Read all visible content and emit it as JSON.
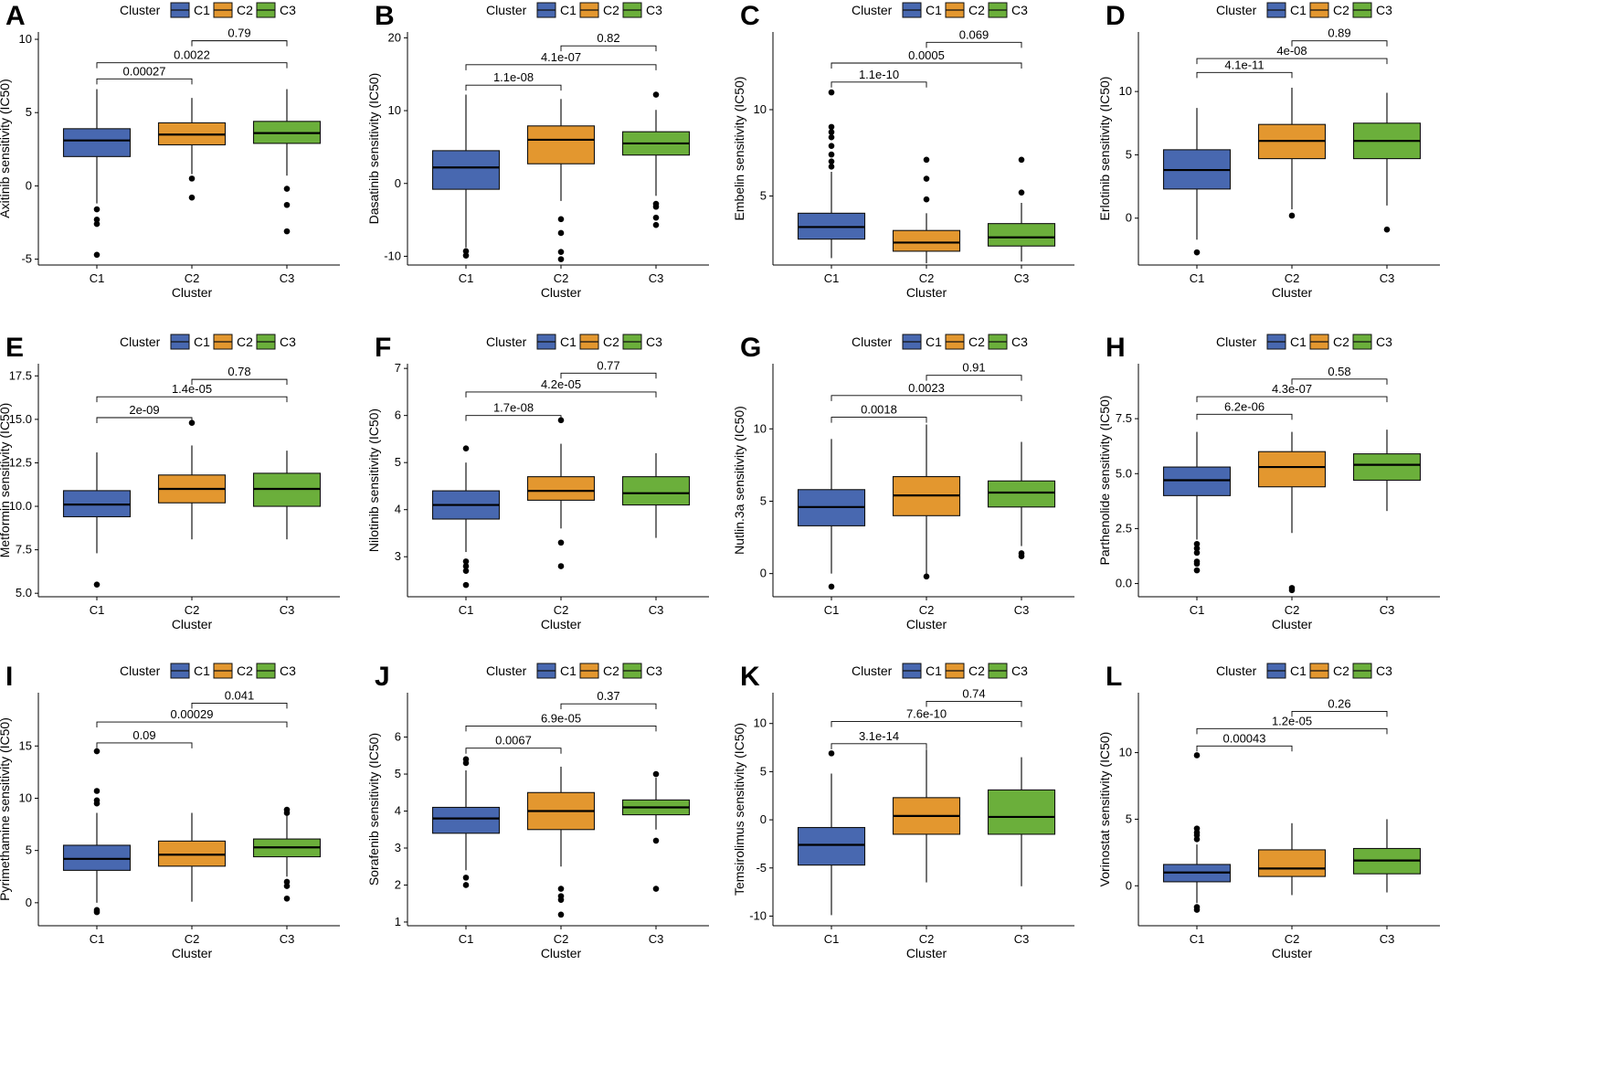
{
  "figure": {
    "legend_title": "Cluster",
    "x_axis_title": "Cluster"
  },
  "colors": {
    "C1": "#4868B0",
    "C2": "#E3972F",
    "C3": "#6BAF3B"
  },
  "chart_data": [
    {
      "panel": "A",
      "type": "boxplot",
      "ylabel": "Axitinib sensitivity (IC50)",
      "xlabel": "Cluster",
      "categories": [
        "C1",
        "C2",
        "C3"
      ],
      "ylim": [
        -5.4,
        10.5
      ],
      "yticks": [
        -5,
        0,
        5,
        10
      ],
      "legend": [
        "C1",
        "C2",
        "C3"
      ],
      "boxes": [
        {
          "name": "C1",
          "q1": 2.0,
          "median": 3.1,
          "q3": 3.9,
          "whisker_low": -1.2,
          "whisker_high": 6.6,
          "outliers": [
            -1.6,
            -2.3,
            -2.6,
            -4.7
          ]
        },
        {
          "name": "C2",
          "q1": 2.8,
          "median": 3.5,
          "q3": 4.3,
          "whisker_low": 0.8,
          "whisker_high": 6.0,
          "outliers": [
            0.5,
            -0.8
          ]
        },
        {
          "name": "C3",
          "q1": 2.9,
          "median": 3.6,
          "q3": 4.4,
          "whisker_low": 0.7,
          "whisker_high": 6.6,
          "outliers": [
            -0.2,
            -1.3,
            -3.1
          ]
        }
      ],
      "comparisons": [
        {
          "groups": [
            "C1",
            "C2"
          ],
          "label": "0.00027",
          "y": 7.3
        },
        {
          "groups": [
            "C1",
            "C3"
          ],
          "label": "0.0022",
          "y": 8.4
        },
        {
          "groups": [
            "C2",
            "C3"
          ],
          "label": "0.79",
          "y": 9.9
        }
      ]
    },
    {
      "panel": "B",
      "type": "boxplot",
      "ylabel": "Dasatinib sensitivity (IC50)",
      "xlabel": "Cluster",
      "categories": [
        "C1",
        "C2",
        "C3"
      ],
      "ylim": [
        -11.2,
        20.8
      ],
      "yticks": [
        -10,
        0,
        10,
        20
      ],
      "legend": [
        "C1",
        "C2",
        "C3"
      ],
      "boxes": [
        {
          "name": "C1",
          "q1": -0.8,
          "median": 2.2,
          "q3": 4.5,
          "whisker_low": -8.8,
          "whisker_high": 12.2,
          "outliers": [
            -9.3,
            -9.9
          ]
        },
        {
          "name": "C2",
          "q1": 2.7,
          "median": 6.0,
          "q3": 7.9,
          "whisker_low": -2.4,
          "whisker_high": 11.6,
          "outliers": [
            -4.9,
            -6.8,
            -9.4,
            -10.4
          ]
        },
        {
          "name": "C3",
          "q1": 3.9,
          "median": 5.5,
          "q3": 7.1,
          "whisker_low": -1.7,
          "whisker_high": 10.1,
          "outliers": [
            12.2,
            -2.8,
            -3.2,
            -4.7,
            -5.7
          ]
        }
      ],
      "comparisons": [
        {
          "groups": [
            "C1",
            "C2"
          ],
          "label": "1.1e-08",
          "y": 13.5
        },
        {
          "groups": [
            "C1",
            "C3"
          ],
          "label": "4.1e-07",
          "y": 16.3
        },
        {
          "groups": [
            "C2",
            "C3"
          ],
          "label": "0.82",
          "y": 18.9
        }
      ]
    },
    {
      "panel": "C",
      "type": "boxplot",
      "ylabel": "Embelin sensitivity (IC50)",
      "xlabel": "Cluster",
      "categories": [
        "C1",
        "C2",
        "C3"
      ],
      "ylim": [
        1.0,
        14.5
      ],
      "yticks": [
        5,
        10
      ],
      "legend": [
        "C1",
        "C2",
        "C3"
      ],
      "boxes": [
        {
          "name": "C1",
          "q1": 2.5,
          "median": 3.2,
          "q3": 4.0,
          "whisker_low": 1.4,
          "whisker_high": 6.4,
          "outliers": [
            11.0,
            9.0,
            8.7,
            8.4,
            7.9,
            7.4,
            7.0,
            6.7
          ]
        },
        {
          "name": "C2",
          "q1": 1.8,
          "median": 2.3,
          "q3": 3.0,
          "whisker_low": 1.1,
          "whisker_high": 4.0,
          "outliers": [
            7.1,
            6.0,
            4.8
          ]
        },
        {
          "name": "C3",
          "q1": 2.1,
          "median": 2.6,
          "q3": 3.4,
          "whisker_low": 1.2,
          "whisker_high": 4.6,
          "outliers": [
            7.1,
            5.2
          ]
        }
      ],
      "comparisons": [
        {
          "groups": [
            "C1",
            "C2"
          ],
          "label": "1.1e-10",
          "y": 11.6
        },
        {
          "groups": [
            "C1",
            "C3"
          ],
          "label": "0.0005",
          "y": 12.7
        },
        {
          "groups": [
            "C2",
            "C3"
          ],
          "label": "0.069",
          "y": 13.9
        }
      ]
    },
    {
      "panel": "D",
      "type": "boxplot",
      "ylabel": "Erlotinib sensitivity (IC50)",
      "xlabel": "Cluster",
      "categories": [
        "C1",
        "C2",
        "C3"
      ],
      "ylim": [
        -3.7,
        14.7
      ],
      "yticks": [
        0,
        5,
        10
      ],
      "legend": [
        "C1",
        "C2",
        "C3"
      ],
      "boxes": [
        {
          "name": "C1",
          "q1": 2.3,
          "median": 3.8,
          "q3": 5.4,
          "whisker_low": -1.7,
          "whisker_high": 8.7,
          "outliers": [
            -2.7
          ]
        },
        {
          "name": "C2",
          "q1": 4.7,
          "median": 6.1,
          "q3": 7.4,
          "whisker_low": 0.7,
          "whisker_high": 10.3,
          "outliers": [
            0.2
          ]
        },
        {
          "name": "C3",
          "q1": 4.7,
          "median": 6.1,
          "q3": 7.5,
          "whisker_low": 1.0,
          "whisker_high": 9.9,
          "outliers": [
            -0.9
          ]
        }
      ],
      "comparisons": [
        {
          "groups": [
            "C1",
            "C2"
          ],
          "label": "4.1e-11",
          "y": 11.5
        },
        {
          "groups": [
            "C1",
            "C3"
          ],
          "label": "4e-08",
          "y": 12.6
        },
        {
          "groups": [
            "C2",
            "C3"
          ],
          "label": "0.89",
          "y": 14.0
        }
      ]
    },
    {
      "panel": "E",
      "type": "boxplot",
      "ylabel": "Metformin sensitivity (IC50)",
      "xlabel": "Cluster",
      "categories": [
        "C1",
        "C2",
        "C3"
      ],
      "ylim": [
        4.8,
        18.2
      ],
      "yticks": [
        5.0,
        7.5,
        10.0,
        12.5,
        15.0,
        17.5
      ],
      "legend": [
        "C1",
        "C2",
        "C3"
      ],
      "boxes": [
        {
          "name": "C1",
          "q1": 9.4,
          "median": 10.1,
          "q3": 10.9,
          "whisker_low": 7.3,
          "whisker_high": 13.1,
          "outliers": [
            5.5
          ]
        },
        {
          "name": "C2",
          "q1": 10.2,
          "median": 11.0,
          "q3": 11.8,
          "whisker_low": 8.1,
          "whisker_high": 13.5,
          "outliers": [
            14.8
          ]
        },
        {
          "name": "C3",
          "q1": 10.0,
          "median": 11.0,
          "q3": 11.9,
          "whisker_low": 8.1,
          "whisker_high": 13.2,
          "outliers": []
        }
      ],
      "comparisons": [
        {
          "groups": [
            "C1",
            "C2"
          ],
          "label": "2e-09",
          "y": 15.1
        },
        {
          "groups": [
            "C1",
            "C3"
          ],
          "label": "1.4e-05",
          "y": 16.3
        },
        {
          "groups": [
            "C2",
            "C3"
          ],
          "label": "0.78",
          "y": 17.3
        }
      ]
    },
    {
      "panel": "F",
      "type": "boxplot",
      "ylabel": "Nilotinib sensitivity (IC50)",
      "xlabel": "Cluster",
      "categories": [
        "C1",
        "C2",
        "C3"
      ],
      "ylim": [
        2.15,
        7.1
      ],
      "yticks": [
        3,
        4,
        5,
        6,
        7
      ],
      "legend": [
        "C1",
        "C2",
        "C3"
      ],
      "boxes": [
        {
          "name": "C1",
          "q1": 3.8,
          "median": 4.1,
          "q3": 4.4,
          "whisker_low": 3.1,
          "whisker_high": 5.0,
          "outliers": [
            5.3,
            2.9,
            2.8,
            2.7,
            2.4
          ]
        },
        {
          "name": "C2",
          "q1": 4.2,
          "median": 4.4,
          "q3": 4.7,
          "whisker_low": 3.6,
          "whisker_high": 5.4,
          "outliers": [
            5.9,
            3.3,
            2.8
          ]
        },
        {
          "name": "C3",
          "q1": 4.1,
          "median": 4.35,
          "q3": 4.7,
          "whisker_low": 3.4,
          "whisker_high": 5.2,
          "outliers": []
        }
      ],
      "comparisons": [
        {
          "groups": [
            "C1",
            "C2"
          ],
          "label": "1.7e-08",
          "y": 6.0
        },
        {
          "groups": [
            "C1",
            "C3"
          ],
          "label": "4.2e-05",
          "y": 6.5
        },
        {
          "groups": [
            "C2",
            "C3"
          ],
          "label": "0.77",
          "y": 6.9
        }
      ]
    },
    {
      "panel": "G",
      "type": "boxplot",
      "ylabel": "Nutlin.3a sensitivity (IC50)",
      "xlabel": "Cluster",
      "categories": [
        "C1",
        "C2",
        "C3"
      ],
      "ylim": [
        -1.6,
        14.5
      ],
      "yticks": [
        0,
        5,
        10
      ],
      "legend": [
        "C1",
        "C2",
        "C3"
      ],
      "boxes": [
        {
          "name": "C1",
          "q1": 3.3,
          "median": 4.6,
          "q3": 5.8,
          "whisker_low": 0.0,
          "whisker_high": 9.3,
          "outliers": [
            -0.9
          ]
        },
        {
          "name": "C2",
          "q1": 4.0,
          "median": 5.4,
          "q3": 6.7,
          "whisker_low": 0.0,
          "whisker_high": 10.3,
          "outliers": [
            -0.2
          ]
        },
        {
          "name": "C3",
          "q1": 4.6,
          "median": 5.6,
          "q3": 6.4,
          "whisker_low": 1.9,
          "whisker_high": 9.1,
          "outliers": [
            1.4,
            1.2
          ]
        }
      ],
      "comparisons": [
        {
          "groups": [
            "C1",
            "C2"
          ],
          "label": "0.0018",
          "y": 10.8
        },
        {
          "groups": [
            "C1",
            "C3"
          ],
          "label": "0.0023",
          "y": 12.3
        },
        {
          "groups": [
            "C2",
            "C3"
          ],
          "label": "0.91",
          "y": 13.7
        }
      ]
    },
    {
      "panel": "H",
      "type": "boxplot",
      "ylabel": "Parthenolide sensitivity (IC50)",
      "xlabel": "Cluster",
      "categories": [
        "C1",
        "C2",
        "C3"
      ],
      "ylim": [
        -0.6,
        10.0
      ],
      "yticks": [
        0.0,
        2.5,
        5.0,
        7.5
      ],
      "legend": [
        "C1",
        "C2",
        "C3"
      ],
      "boxes": [
        {
          "name": "C1",
          "q1": 4.0,
          "median": 4.7,
          "q3": 5.3,
          "whisker_low": 2.0,
          "whisker_high": 6.9,
          "outliers": [
            1.8,
            1.6,
            1.4,
            1.0,
            0.9,
            0.6
          ]
        },
        {
          "name": "C2",
          "q1": 4.4,
          "median": 5.3,
          "q3": 6.0,
          "whisker_low": 2.3,
          "whisker_high": 6.9,
          "outliers": [
            -0.2,
            -0.3
          ]
        },
        {
          "name": "C3",
          "q1": 4.7,
          "median": 5.4,
          "q3": 5.9,
          "whisker_low": 3.3,
          "whisker_high": 7.0,
          "outliers": []
        }
      ],
      "comparisons": [
        {
          "groups": [
            "C1",
            "C2"
          ],
          "label": "6.2e-06",
          "y": 7.7
        },
        {
          "groups": [
            "C1",
            "C3"
          ],
          "label": "4.3e-07",
          "y": 8.5
        },
        {
          "groups": [
            "C2",
            "C3"
          ],
          "label": "0.58",
          "y": 9.3
        }
      ]
    },
    {
      "panel": "I",
      "type": "boxplot",
      "ylabel": "Pyrimethamine sensitivity (IC50)",
      "xlabel": "Cluster",
      "categories": [
        "C1",
        "C2",
        "C3"
      ],
      "ylim": [
        -2.2,
        20.1
      ],
      "yticks": [
        0,
        5,
        10,
        15
      ],
      "legend": [
        "C1",
        "C2",
        "C3"
      ],
      "boxes": [
        {
          "name": "C1",
          "q1": 3.1,
          "median": 4.2,
          "q3": 5.5,
          "whisker_low": 0.0,
          "whisker_high": 8.6,
          "outliers": [
            14.5,
            10.7,
            9.8,
            9.5,
            -0.7,
            -0.9
          ]
        },
        {
          "name": "C2",
          "q1": 3.5,
          "median": 4.6,
          "q3": 5.9,
          "whisker_low": 0.1,
          "whisker_high": 8.6,
          "outliers": []
        },
        {
          "name": "C3",
          "q1": 4.4,
          "median": 5.3,
          "q3": 6.1,
          "whisker_low": 2.5,
          "whisker_high": 8.5,
          "outliers": [
            8.9,
            8.6,
            2.0,
            1.6,
            0.4
          ]
        }
      ],
      "comparisons": [
        {
          "groups": [
            "C1",
            "C2"
          ],
          "label": "0.09",
          "y": 15.3
        },
        {
          "groups": [
            "C1",
            "C3"
          ],
          "label": "0.00029",
          "y": 17.3
        },
        {
          "groups": [
            "C2",
            "C3"
          ],
          "label": "0.041",
          "y": 19.1
        }
      ]
    },
    {
      "panel": "J",
      "type": "boxplot",
      "ylabel": "Sorafenib sensitivity (IC50)",
      "xlabel": "Cluster",
      "categories": [
        "C1",
        "C2",
        "C3"
      ],
      "ylim": [
        0.9,
        7.2
      ],
      "yticks": [
        1,
        2,
        3,
        4,
        5,
        6
      ],
      "legend": [
        "C1",
        "C2",
        "C3"
      ],
      "boxes": [
        {
          "name": "C1",
          "q1": 3.4,
          "median": 3.8,
          "q3": 4.1,
          "whisker_low": 2.4,
          "whisker_high": 5.1,
          "outliers": [
            5.4,
            5.3,
            2.2,
            2.0
          ]
        },
        {
          "name": "C2",
          "q1": 3.5,
          "median": 4.0,
          "q3": 4.5,
          "whisker_low": 2.5,
          "whisker_high": 5.2,
          "outliers": [
            1.9,
            1.7,
            1.6,
            1.2
          ]
        },
        {
          "name": "C3",
          "q1": 3.9,
          "median": 4.1,
          "q3": 4.3,
          "whisker_low": 3.5,
          "whisker_high": 4.9,
          "outliers": [
            5.0,
            3.2,
            1.9
          ]
        }
      ],
      "comparisons": [
        {
          "groups": [
            "C1",
            "C2"
          ],
          "label": "0.0067",
          "y": 5.7
        },
        {
          "groups": [
            "C1",
            "C3"
          ],
          "label": "6.9e-05",
          "y": 6.3
        },
        {
          "groups": [
            "C2",
            "C3"
          ],
          "label": "0.37",
          "y": 6.9
        }
      ]
    },
    {
      "panel": "K",
      "type": "boxplot",
      "ylabel": "Temsirolimus sensitivity (IC50)",
      "xlabel": "Cluster",
      "categories": [
        "C1",
        "C2",
        "C3"
      ],
      "ylim": [
        -11.0,
        13.2
      ],
      "yticks": [
        -10,
        -5,
        0,
        5,
        10
      ],
      "legend": [
        "C1",
        "C2",
        "C3"
      ],
      "boxes": [
        {
          "name": "C1",
          "q1": -4.7,
          "median": -2.6,
          "q3": -0.8,
          "whisker_low": -9.9,
          "whisker_high": 4.8,
          "outliers": [
            6.9
          ]
        },
        {
          "name": "C2",
          "q1": -1.5,
          "median": 0.4,
          "q3": 2.3,
          "whisker_low": -6.5,
          "whisker_high": 7.3,
          "outliers": []
        },
        {
          "name": "C3",
          "q1": -1.5,
          "median": 0.3,
          "q3": 3.1,
          "whisker_low": -6.9,
          "whisker_high": 6.5,
          "outliers": []
        }
      ],
      "comparisons": [
        {
          "groups": [
            "C1",
            "C2"
          ],
          "label": "3.1e-14",
          "y": 7.9
        },
        {
          "groups": [
            "C1",
            "C3"
          ],
          "label": "7.6e-10",
          "y": 10.2
        },
        {
          "groups": [
            "C2",
            "C3"
          ],
          "label": "0.74",
          "y": 12.3
        }
      ]
    },
    {
      "panel": "L",
      "type": "boxplot",
      "ylabel": "Vorinostat sensitivity (IC50)",
      "xlabel": "Cluster",
      "categories": [
        "C1",
        "C2",
        "C3"
      ],
      "ylim": [
        -3.0,
        14.5
      ],
      "yticks": [
        0,
        5,
        10
      ],
      "legend": [
        "C1",
        "C2",
        "C3"
      ],
      "boxes": [
        {
          "name": "C1",
          "q1": 0.3,
          "median": 1.0,
          "q3": 1.6,
          "whisker_low": -1.3,
          "whisker_high": 3.1,
          "outliers": [
            9.8,
            4.3,
            4.0,
            3.8,
            3.5,
            -1.6,
            -1.8
          ]
        },
        {
          "name": "C2",
          "q1": 0.7,
          "median": 1.3,
          "q3": 2.7,
          "whisker_low": -0.7,
          "whisker_high": 4.7,
          "outliers": []
        },
        {
          "name": "C3",
          "q1": 0.9,
          "median": 1.9,
          "q3": 2.8,
          "whisker_low": -0.5,
          "whisker_high": 5.0,
          "outliers": []
        }
      ],
      "comparisons": [
        {
          "groups": [
            "C1",
            "C2"
          ],
          "label": "0.00043",
          "y": 10.5
        },
        {
          "groups": [
            "C1",
            "C3"
          ],
          "label": "1.2e-05",
          "y": 11.8
        },
        {
          "groups": [
            "C2",
            "C3"
          ],
          "label": "0.26",
          "y": 13.1
        }
      ]
    }
  ]
}
